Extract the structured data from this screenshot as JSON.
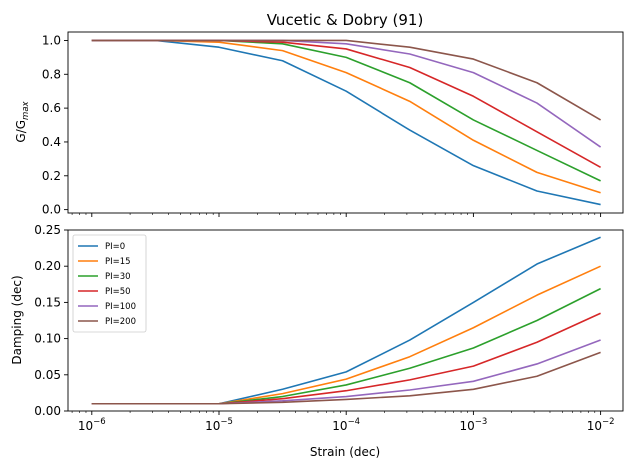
{
  "chart_data": [
    {
      "type": "line",
      "title": "Vucetic & Dobry (91)",
      "xlabel": "",
      "ylabel": "G/G_max",
      "x_scale": "log",
      "xlim": [
        6.5e-07,
        0.015
      ],
      "ylim": [
        -0.02,
        1.05
      ],
      "yticks": [
        0.0,
        0.2,
        0.4,
        0.6,
        0.8,
        1.0
      ],
      "ytick_labels": [
        "0.0",
        "0.2",
        "0.4",
        "0.6",
        "0.8",
        "1.0"
      ],
      "x": [
        1e-06,
        3.16e-06,
        1e-05,
        3.16e-05,
        0.0001,
        0.000316,
        0.001,
        0.00316,
        0.01
      ],
      "series": [
        {
          "name": "PI=0",
          "color": "#1f77b4",
          "values": [
            1.0,
            1.0,
            0.96,
            0.88,
            0.7,
            0.47,
            0.26,
            0.11,
            0.03
          ]
        },
        {
          "name": "PI=15",
          "color": "#ff7f0e",
          "values": [
            1.0,
            1.0,
            0.99,
            0.94,
            0.81,
            0.64,
            0.41,
            0.22,
            0.1
          ]
        },
        {
          "name": "PI=30",
          "color": "#2ca02c",
          "values": [
            1.0,
            1.0,
            1.0,
            0.98,
            0.9,
            0.75,
            0.53,
            0.35,
            0.17
          ]
        },
        {
          "name": "PI=50",
          "color": "#d62728",
          "values": [
            1.0,
            1.0,
            1.0,
            0.99,
            0.95,
            0.84,
            0.67,
            0.46,
            0.25
          ]
        },
        {
          "name": "PI=100",
          "color": "#9467bd",
          "values": [
            1.0,
            1.0,
            1.0,
            1.0,
            0.98,
            0.92,
            0.81,
            0.63,
            0.37
          ]
        },
        {
          "name": "PI=200",
          "color": "#8c564b",
          "values": [
            1.0,
            1.0,
            1.0,
            1.0,
            1.0,
            0.96,
            0.89,
            0.75,
            0.53
          ]
        }
      ]
    },
    {
      "type": "line",
      "title": "",
      "xlabel": "Strain (dec)",
      "ylabel": "Damping (dec)",
      "x_scale": "log",
      "xlim": [
        6.5e-07,
        0.015
      ],
      "ylim": [
        0.0,
        0.25
      ],
      "yticks": [
        0.0,
        0.05,
        0.1,
        0.15,
        0.2,
        0.25
      ],
      "ytick_labels": [
        "0.00",
        "0.05",
        "0.10",
        "0.15",
        "0.20",
        "0.25"
      ],
      "xticks": [
        1e-06,
        1e-05,
        0.0001,
        0.001,
        0.01
      ],
      "xtick_labels": [
        {
          "base": "10",
          "exp": "−6"
        },
        {
          "base": "10",
          "exp": "−5"
        },
        {
          "base": "10",
          "exp": "−4"
        },
        {
          "base": "10",
          "exp": "−3"
        },
        {
          "base": "10",
          "exp": "−2"
        }
      ],
      "legend": "top-left",
      "x": [
        1e-06,
        3.16e-06,
        1e-05,
        3.16e-05,
        0.0001,
        0.000316,
        0.001,
        0.00316,
        0.01
      ],
      "series": [
        {
          "name": "PI=0",
          "color": "#1f77b4",
          "values": [
            0.01,
            0.01,
            0.01,
            0.03,
            0.054,
            0.098,
            0.15,
            0.203,
            0.24
          ]
        },
        {
          "name": "PI=15",
          "color": "#ff7f0e",
          "values": [
            0.01,
            0.01,
            0.01,
            0.024,
            0.044,
            0.075,
            0.115,
            0.16,
            0.2
          ]
        },
        {
          "name": "PI=30",
          "color": "#2ca02c",
          "values": [
            0.01,
            0.01,
            0.01,
            0.02,
            0.036,
            0.059,
            0.087,
            0.125,
            0.169
          ]
        },
        {
          "name": "PI=50",
          "color": "#d62728",
          "values": [
            0.01,
            0.01,
            0.01,
            0.017,
            0.028,
            0.043,
            0.062,
            0.095,
            0.135
          ]
        },
        {
          "name": "PI=100",
          "color": "#9467bd",
          "values": [
            0.01,
            0.01,
            0.01,
            0.014,
            0.02,
            0.029,
            0.041,
            0.065,
            0.098
          ]
        },
        {
          "name": "PI=200",
          "color": "#8c564b",
          "values": [
            0.01,
            0.01,
            0.01,
            0.012,
            0.016,
            0.021,
            0.03,
            0.048,
            0.081
          ]
        }
      ]
    }
  ]
}
